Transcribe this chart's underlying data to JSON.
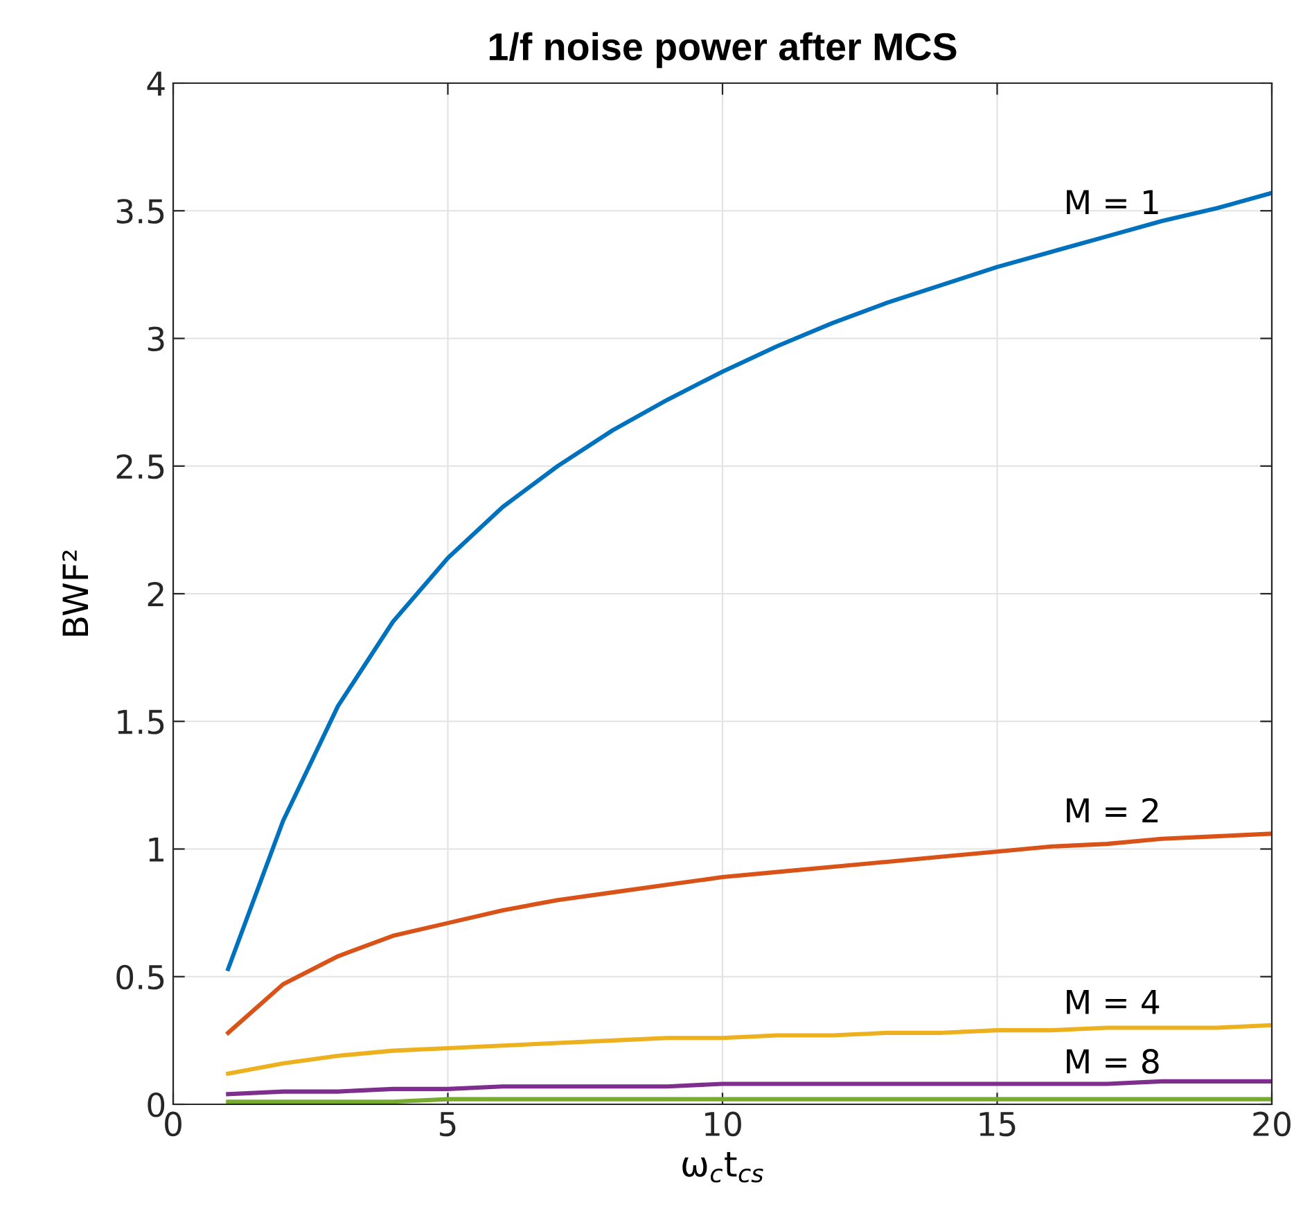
{
  "chart_data": {
    "type": "line",
    "title": "1/f noise power after MCS",
    "xlabel": "ω$_{c}$t$_{cs}$",
    "ylabel": "BWF²",
    "x": [
      1,
      2,
      3,
      4,
      5,
      6,
      7,
      8,
      9,
      10,
      11,
      12,
      13,
      14,
      15,
      16,
      17,
      18,
      19,
      20
    ],
    "series": [
      {
        "name": "M = 1",
        "color": "#0072bd",
        "values": [
          0.53,
          1.11,
          1.56,
          1.89,
          2.14,
          2.34,
          2.5,
          2.64,
          2.76,
          2.87,
          2.97,
          3.06,
          3.14,
          3.21,
          3.28,
          3.34,
          3.4,
          3.46,
          3.51,
          3.57
        ]
      },
      {
        "name": "M = 2",
        "color": "#d95319",
        "values": [
          0.28,
          0.47,
          0.58,
          0.66,
          0.71,
          0.76,
          0.8,
          0.83,
          0.86,
          0.89,
          0.91,
          0.93,
          0.95,
          0.97,
          0.99,
          1.01,
          1.02,
          1.04,
          1.05,
          1.06
        ]
      },
      {
        "name": "M = 4",
        "color": "#edb120",
        "values": [
          0.12,
          0.16,
          0.19,
          0.21,
          0.22,
          0.23,
          0.24,
          0.25,
          0.26,
          0.26,
          0.27,
          0.27,
          0.28,
          0.28,
          0.29,
          0.29,
          0.3,
          0.3,
          0.3,
          0.31
        ]
      },
      {
        "name": "M = 8",
        "color": "#7e2f8e",
        "values": [
          0.04,
          0.05,
          0.05,
          0.06,
          0.06,
          0.07,
          0.07,
          0.07,
          0.07,
          0.08,
          0.08,
          0.08,
          0.08,
          0.08,
          0.08,
          0.08,
          0.08,
          0.09,
          0.09,
          0.09
        ]
      },
      {
        "color": "#77ac30",
        "values": [
          0.01,
          0.01,
          0.01,
          0.01,
          0.02,
          0.02,
          0.02,
          0.02,
          0.02,
          0.02,
          0.02,
          0.02,
          0.02,
          0.02,
          0.02,
          0.02,
          0.02,
          0.02,
          0.02,
          0.02
        ]
      }
    ],
    "xlim": [
      0,
      20
    ],
    "ylim": [
      0,
      4
    ],
    "xticks": [
      0,
      5,
      10,
      15,
      20
    ],
    "yticks": [
      0,
      0.5,
      1,
      1.5,
      2,
      2.5,
      3,
      3.5,
      4
    ],
    "grid": true,
    "legend": false
  }
}
